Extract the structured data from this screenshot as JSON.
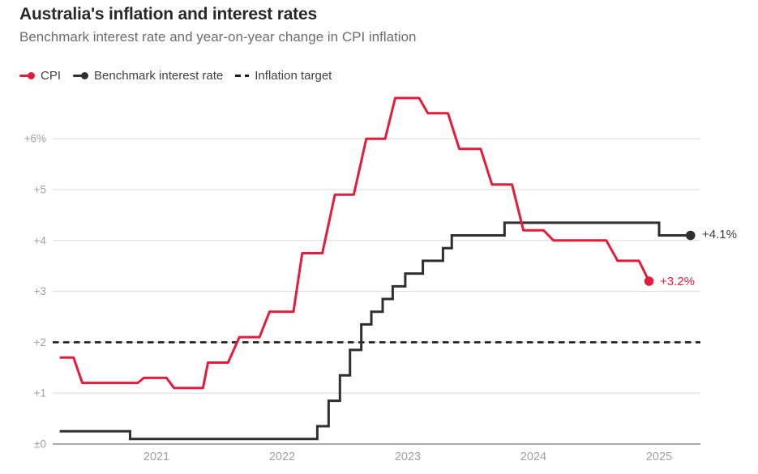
{
  "header": {
    "title": "Australia's inflation and interest rates",
    "subtitle": "Benchmark interest rate and year-on-year change in CPI inflation"
  },
  "legend": [
    {
      "label": "CPI",
      "marker": "line-dot",
      "color": "#e31c3c"
    },
    {
      "label": "Benchmark interest rate",
      "marker": "line-dot",
      "color": "#2f2f2f"
    },
    {
      "label": "Inflation target",
      "marker": "dashes",
      "color": "#1e1e1e"
    }
  ],
  "chart_data": {
    "type": "line",
    "title": "Australia's inflation and interest rates",
    "subtitle": "Benchmark interest rate and year-on-year change in CPI inflation",
    "unit": "%",
    "grid": true,
    "x_ticks": [
      2021,
      2022,
      2023,
      2024,
      2025
    ],
    "y_ticks": [
      {
        "value": 0,
        "label": "±0"
      },
      {
        "value": 1,
        "label": "+1"
      },
      {
        "value": 2,
        "label": "+2"
      },
      {
        "value": 3,
        "label": "+3"
      },
      {
        "value": 4,
        "label": "+4"
      },
      {
        "value": 5,
        "label": "+5"
      },
      {
        "value": 6,
        "label": "+6%"
      }
    ],
    "x_range_years": [
      2020.17,
      2025.4
    ],
    "y_range": [
      0,
      6.9
    ],
    "inflation_target": 2.0,
    "series": [
      {
        "name": "CPI",
        "color": "#e31c3c",
        "style": "polyline",
        "end_label": "+3.2%",
        "end_value": 3.2,
        "vertices": [
          [
            2020.23,
            1.7
          ],
          [
            2020.34,
            1.7
          ],
          [
            2020.41,
            1.2
          ],
          [
            2020.85,
            1.2
          ],
          [
            2020.9,
            1.3
          ],
          [
            2021.08,
            1.3
          ],
          [
            2021.14,
            1.1
          ],
          [
            2021.37,
            1.1
          ],
          [
            2021.41,
            1.6
          ],
          [
            2021.57,
            1.6
          ],
          [
            2021.66,
            2.1
          ],
          [
            2021.82,
            2.1
          ],
          [
            2021.9,
            2.6
          ],
          [
            2022.09,
            2.6
          ],
          [
            2022.16,
            3.75
          ],
          [
            2022.32,
            3.75
          ],
          [
            2022.42,
            4.9
          ],
          [
            2022.57,
            4.9
          ],
          [
            2022.67,
            6.0
          ],
          [
            2022.82,
            6.0
          ],
          [
            2022.9,
            6.8
          ],
          [
            2023.09,
            6.8
          ],
          [
            2023.16,
            6.5
          ],
          [
            2023.32,
            6.5
          ],
          [
            2023.41,
            5.8
          ],
          [
            2023.58,
            5.8
          ],
          [
            2023.67,
            5.1
          ],
          [
            2023.83,
            5.1
          ],
          [
            2023.92,
            4.2
          ],
          [
            2024.08,
            4.2
          ],
          [
            2024.16,
            4.0
          ],
          [
            2024.58,
            4.0
          ],
          [
            2024.67,
            3.6
          ],
          [
            2024.84,
            3.6
          ],
          [
            2024.92,
            3.2
          ]
        ]
      },
      {
        "name": "Benchmark interest rate",
        "color": "#2f2f2f",
        "style": "step-after",
        "end_label": "+4.1%",
        "end_value": 4.1,
        "end_year": 2025.25,
        "changes": [
          [
            2020.23,
            0.25
          ],
          [
            2020.79,
            0.1
          ],
          [
            2022.28,
            0.35
          ],
          [
            2022.37,
            0.85
          ],
          [
            2022.46,
            1.35
          ],
          [
            2022.54,
            1.85
          ],
          [
            2022.63,
            2.35
          ],
          [
            2022.71,
            2.6
          ],
          [
            2022.8,
            2.85
          ],
          [
            2022.88,
            3.1
          ],
          [
            2022.98,
            3.35
          ],
          [
            2023.12,
            3.6
          ],
          [
            2023.28,
            3.85
          ],
          [
            2023.35,
            4.1
          ],
          [
            2023.77,
            4.35
          ],
          [
            2025.0,
            4.1
          ]
        ]
      }
    ]
  }
}
